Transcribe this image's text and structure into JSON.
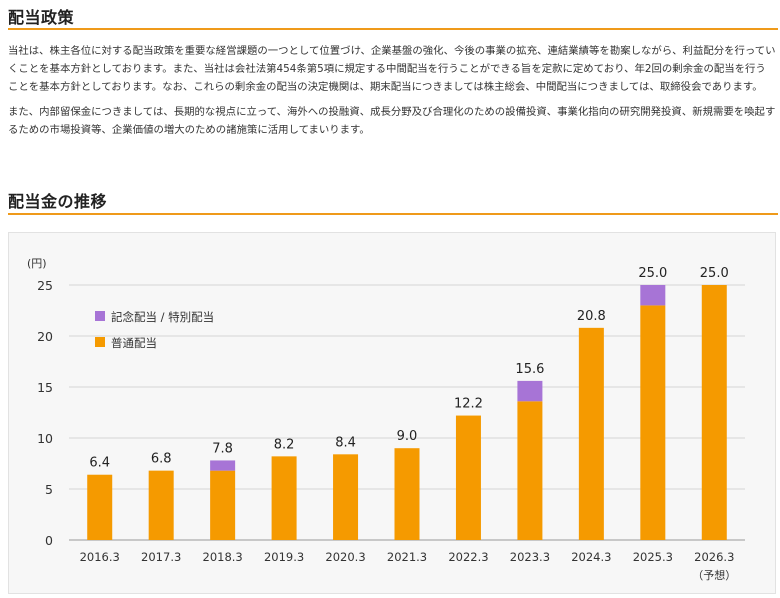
{
  "policy": {
    "title": "配当政策",
    "paragraph1": "当社は、株主各位に対する配当政策を重要な経営課題の一つとして位置づけ、企業基盤の強化、今後の事業の拡充、連結業績等を勘案しながら、利益配分を行っていくことを基本方針としております。また、当社は会社法第454条第5項に規定する中間配当を行うことができる旨を定款に定めており、年2回の剰余金の配当を行うことを基本方針としております。なお、これらの剰余金の配当の決定機関は、期末配当につきましては株主総会、中間配当につきましては、取締役会であります。",
    "paragraph2": "また、内部留保金につきましては、長期的な視点に立って、海外への投融資、成長分野及び合理化のための設備投資、事業化指向の研究開発投資、新規需要を喚起するための市場投資等、企業価値の増大のための諸施策に活用してまいります。"
  },
  "dividend": {
    "title": "配当金の推移"
  },
  "chart_data": {
    "type": "bar",
    "stacked": true,
    "yunit": "(円)",
    "ylim": [
      0,
      25
    ],
    "yticks": [
      "0",
      "5",
      "10",
      "15",
      "20",
      "25"
    ],
    "grid": true,
    "legend_position": "top-left",
    "categories": [
      "2016.3",
      "2017.3",
      "2018.3",
      "2019.3",
      "2020.3",
      "2021.3",
      "2022.3",
      "2023.3",
      "2024.3",
      "2025.3",
      "2026.3"
    ],
    "category_note": {
      "index": 10,
      "text": "（予想）"
    },
    "series": [
      {
        "name": "普通配当",
        "color": "#f59a00",
        "values": [
          6.4,
          6.8,
          6.8,
          8.2,
          8.4,
          9.0,
          12.2,
          13.6,
          20.8,
          23.0,
          25.0
        ]
      },
      {
        "name": "記念配当 / 特別配当",
        "color": "#a774d6",
        "values": [
          0,
          0,
          1.0,
          0,
          0,
          0,
          0,
          2.0,
          0,
          2.0,
          0
        ]
      }
    ],
    "legend_order": [
      1,
      0
    ],
    "totals": [
      "6.4",
      "6.8",
      "7.8",
      "8.2",
      "8.4",
      "9.0",
      "12.2",
      "15.6",
      "20.8",
      "25.0",
      "25.0"
    ]
  }
}
